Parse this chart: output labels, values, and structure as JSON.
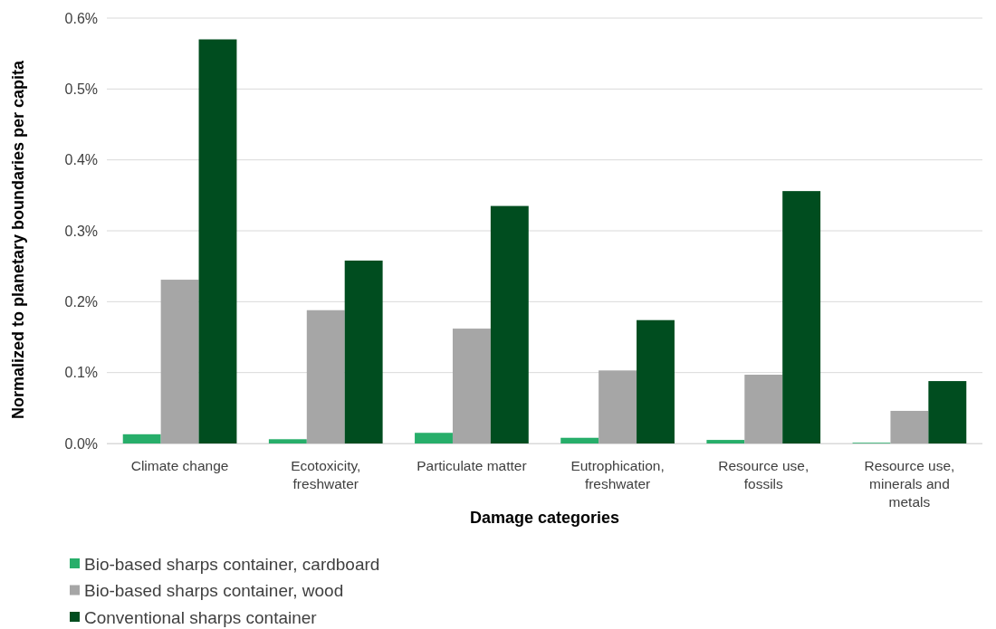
{
  "chart_data": {
    "type": "bar",
    "xlabel": "Damage categories",
    "ylabel": "Normalized to planetary boundaries per capita",
    "categories": [
      "Climate change",
      "Ecotoxicity, freshwater",
      "Particulate matter",
      "Eutrophication, freshwater",
      "Resource use, fossils",
      "Resource use, minerals and metals"
    ],
    "series": [
      {
        "name": "Bio-based sharps container, cardboard",
        "color": "#27ae6a",
        "values": [
          0.013,
          0.006,
          0.015,
          0.008,
          0.005,
          0.001
        ]
      },
      {
        "name": "Bio-based sharps container, wood",
        "color": "#a6a6a6",
        "values": [
          0.231,
          0.188,
          0.162,
          0.103,
          0.097,
          0.046
        ]
      },
      {
        "name": "Conventional sharps container",
        "color": "#004d1f",
        "values": [
          0.57,
          0.258,
          0.335,
          0.174,
          0.356,
          0.088
        ]
      }
    ],
    "ylim": [
      0,
      0.6
    ],
    "yticks": [
      {
        "value": 0,
        "label": "0.0%"
      },
      {
        "value": 0.1,
        "label": "0.1%"
      },
      {
        "value": 0.2,
        "label": "0.2%"
      },
      {
        "value": 0.3,
        "label": "0.3%"
      },
      {
        "value": 0.4,
        "label": "0.4%"
      },
      {
        "value": 0.5,
        "label": "0.5%"
      },
      {
        "value": 0.6,
        "label": "0.6%"
      }
    ],
    "grid": "y",
    "legend": "bottom left"
  }
}
